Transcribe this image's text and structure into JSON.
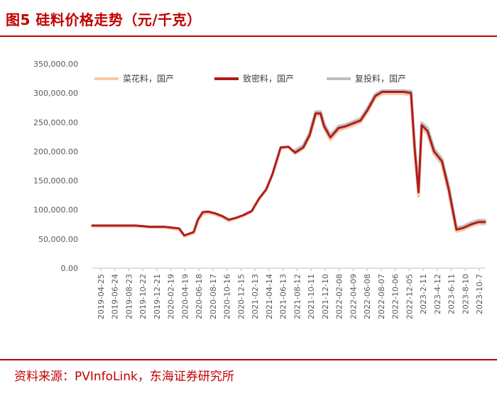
{
  "title": "图5  硅料价格走势（元/千克）",
  "source": "资料来源：PVInfoLink，东海证券研究所",
  "chart_data": {
    "type": "line",
    "title": "图5  硅料价格走势（元/千克）",
    "ylim": [
      0,
      350000
    ],
    "yticks": [
      "0.00",
      "50,000.00",
      "100,000.00",
      "150,000.00",
      "200,000.00",
      "250,000.00",
      "300,000.00",
      "350,000.00"
    ],
    "xticks": [
      "2019-04-25",
      "2019-06-24",
      "2019-08-23",
      "2019-10-22",
      "2019-12-21",
      "2020-02-19",
      "2020-04-19",
      "2020-06-18",
      "2020-08-17",
      "2020-10-16",
      "2020-12-15",
      "2021-02-13",
      "2021-04-14",
      "2021-06-13",
      "2021-08-12",
      "2021-10-11",
      "2021-12-10",
      "2022-02-08",
      "2022-04-09",
      "2022-06-08",
      "2022-08-07",
      "2022-10-06",
      "2022-12-05",
      "2023-2-11",
      "2023-4-12",
      "2023-6-11",
      "2023-8-10",
      "2023-10-7"
    ],
    "x": [
      "2019-04-25",
      "2019-06-24",
      "2019-08-23",
      "2019-10-22",
      "2019-12-21",
      "2020-02-19",
      "2020-04-19",
      "2020-05-10",
      "2020-06-18",
      "2020-07-05",
      "2020-07-25",
      "2020-08-17",
      "2020-09-15",
      "2020-10-16",
      "2020-11-10",
      "2020-12-15",
      "2021-01-10",
      "2021-02-13",
      "2021-03-15",
      "2021-04-14",
      "2021-05-10",
      "2021-06-13",
      "2021-07-15",
      "2021-08-12",
      "2021-09-15",
      "2021-10-11",
      "2021-11-05",
      "2021-11-25",
      "2021-12-10",
      "2022-01-05",
      "2022-02-08",
      "2022-03-10",
      "2022-04-09",
      "2022-05-10",
      "2022-06-08",
      "2022-07-10",
      "2022-08-07",
      "2022-09-05",
      "2022-10-06",
      "2022-11-05",
      "2022-12-05",
      "2022-12-20",
      "2023-01-05",
      "2023-01-18",
      "2023-02-11",
      "2023-03-10",
      "2023-04-12",
      "2023-05-10",
      "2023-06-11",
      "2023-07-10",
      "2023-08-10",
      "2023-09-10",
      "2023-10-07"
    ],
    "series": [
      {
        "name": "菜花料，国产",
        "color": "#f4c9a8",
        "values": [
          72000,
          72000,
          72000,
          72000,
          70000,
          70000,
          66000,
          55000,
          60000,
          80000,
          93000,
          95000,
          92000,
          87000,
          81000,
          86000,
          90000,
          97000,
          118000,
          134000,
          160000,
          205000,
          207000,
          196000,
          205000,
          225000,
          262000,
          262000,
          240000,
          220000,
          236000,
          240000,
          245000,
          250000,
          268000,
          292000,
          299000,
          299000,
          299000,
          299000,
          297000,
          200000,
          123000,
          240000,
          230000,
          195000,
          178000,
          130000,
          63000,
          66000,
          72000,
          76000,
          76000
        ]
      },
      {
        "name": "致密料，国产",
        "color": "#b01c1c",
        "values": [
          73000,
          73000,
          73000,
          73000,
          71000,
          71000,
          68000,
          56000,
          62000,
          83000,
          96000,
          97000,
          94000,
          89000,
          83000,
          87000,
          91000,
          98000,
          119000,
          135000,
          161000,
          207000,
          208000,
          198000,
          207000,
          228000,
          265000,
          265000,
          243000,
          224000,
          240000,
          243000,
          248000,
          253000,
          271000,
          295000,
          302000,
          302000,
          302000,
          302000,
          300000,
          205000,
          130000,
          245000,
          235000,
          200000,
          183000,
          135000,
          66000,
          69000,
          75000,
          79000,
          79000
        ]
      },
      {
        "name": "复投料，国产",
        "color": "#bfbfbf",
        "values": [
          null,
          null,
          null,
          null,
          null,
          null,
          null,
          null,
          null,
          null,
          null,
          null,
          null,
          null,
          null,
          null,
          null,
          null,
          null,
          null,
          null,
          null,
          null,
          202000,
          210000,
          231000,
          268000,
          268000,
          247000,
          228000,
          243000,
          246000,
          251000,
          256000,
          274000,
          298000,
          304000,
          304000,
          304000,
          304000,
          303000,
          210000,
          135000,
          249000,
          240000,
          205000,
          187000,
          140000,
          69000,
          72000,
          78000,
          82000,
          82000
        ]
      }
    ],
    "legend": "top",
    "grid": false
  }
}
